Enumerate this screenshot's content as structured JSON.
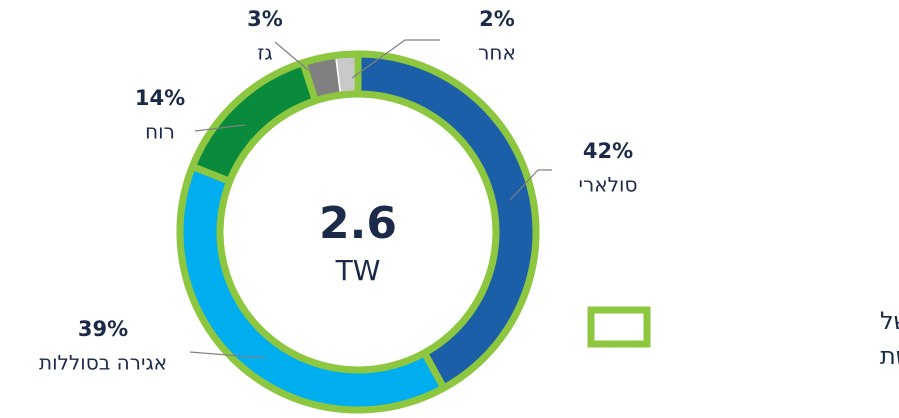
{
  "chart_data": {
    "type": "donut",
    "categories": [
      "סולארי",
      "אגירה בסוללות",
      "רוח",
      "גז",
      "אחר"
    ],
    "values": [
      42,
      39,
      14,
      3,
      2
    ],
    "value_labels": [
      "42%",
      "39%",
      "14%",
      "3%",
      "2%"
    ],
    "colors": [
      "#1b5fa9",
      "#00aeef",
      "#0a8a3c",
      "#808080",
      "#c9c9c9"
    ],
    "renewable": [
      true,
      true,
      true,
      false,
      false
    ],
    "outline_color": "#8dc63f",
    "center_value": 2.6,
    "center_unit": "TW",
    "legend": {
      "lines": [
        "= פרויקטים של",
        "אנרגיה מתחדשת"
      ]
    }
  }
}
